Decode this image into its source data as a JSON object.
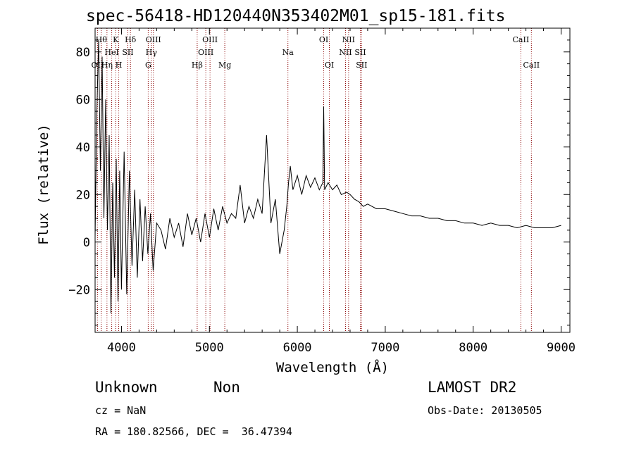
{
  "chart_data": {
    "type": "line",
    "title": "spec-56418-HD120440N353402M01_sp15-181.fits",
    "xlabel": "Wavelength (Å)",
    "ylabel": "Flux (relative)",
    "xlim": [
      3700,
      9100
    ],
    "ylim": [
      -38,
      90
    ],
    "xticks": [
      4000,
      5000,
      6000,
      7000,
      8000,
      9000
    ],
    "xtick_labels": [
      "4000",
      "5000",
      "6000",
      "7000",
      "8000",
      "9000"
    ],
    "yticks": [
      -20,
      0,
      20,
      40,
      60,
      80
    ],
    "ytick_labels": [
      "−20",
      "0",
      "20",
      "40",
      "60",
      "80"
    ],
    "grid": false,
    "series": [
      {
        "color": "#000000",
        "x": [
          3700,
          3720,
          3740,
          3760,
          3780,
          3800,
          3820,
          3840,
          3860,
          3880,
          3900,
          3920,
          3940,
          3960,
          3980,
          4000,
          4030,
          4060,
          4090,
          4120,
          4150,
          4180,
          4210,
          4240,
          4270,
          4300,
          4330,
          4360,
          4400,
          4450,
          4500,
          4550,
          4600,
          4650,
          4700,
          4750,
          4800,
          4850,
          4900,
          4950,
          5000,
          5050,
          5100,
          5150,
          5200,
          5250,
          5300,
          5350,
          5400,
          5450,
          5500,
          5550,
          5600,
          5650,
          5700,
          5750,
          5800,
          5850,
          5880,
          5900,
          5920,
          5950,
          6000,
          6050,
          6100,
          6150,
          6200,
          6250,
          6290,
          6300,
          6310,
          6350,
          6400,
          6450,
          6500,
          6560,
          6600,
          6650,
          6700,
          6750,
          6800,
          6900,
          7000,
          7100,
          7200,
          7300,
          7400,
          7500,
          7600,
          7700,
          7800,
          7900,
          8000,
          8100,
          8200,
          8300,
          8400,
          8500,
          8600,
          8700,
          8800,
          8900,
          9000
        ],
        "y": [
          2,
          55,
          85,
          30,
          78,
          10,
          60,
          5,
          45,
          -30,
          25,
          -15,
          35,
          -25,
          30,
          -20,
          38,
          -22,
          30,
          -10,
          22,
          -15,
          18,
          -8,
          15,
          -5,
          12,
          -12,
          8,
          5,
          -3,
          10,
          2,
          8,
          -2,
          12,
          3,
          10,
          0,
          12,
          2,
          14,
          5,
          15,
          8,
          12,
          10,
          24,
          8,
          15,
          10,
          18,
          12,
          45,
          8,
          18,
          -5,
          5,
          15,
          25,
          32,
          22,
          28,
          20,
          28,
          23,
          27,
          22,
          25,
          57,
          22,
          25,
          22,
          24,
          20,
          21,
          20,
          18,
          17,
          15,
          16,
          14,
          14,
          13,
          12,
          11,
          11,
          10,
          10,
          9,
          9,
          8,
          8,
          7,
          8,
          7,
          7,
          6,
          7,
          6,
          6,
          6,
          7
        ]
      }
    ],
    "line_markers": [
      {
        "wl": 3727,
        "label": "OII",
        "row": 2
      },
      {
        "wl": 3770,
        "label": "Hθ",
        "row": 0
      },
      {
        "wl": 3835,
        "label": "Hη",
        "row": 2
      },
      {
        "wl": 3889,
        "label": "HeI",
        "row": 1
      },
      {
        "wl": 3934,
        "label": "K",
        "row": 0
      },
      {
        "wl": 3969,
        "label": "H",
        "row": 2
      },
      {
        "wl": 4072,
        "label": "SII",
        "row": 1
      },
      {
        "wl": 4102,
        "label": "Hδ",
        "row": 0
      },
      {
        "wl": 4304,
        "label": "G",
        "row": 2
      },
      {
        "wl": 4340,
        "label": "Hγ",
        "row": 1
      },
      {
        "wl": 4363,
        "label": "OIII",
        "row": 0
      },
      {
        "wl": 4861,
        "label": "Hβ",
        "row": 2
      },
      {
        "wl": 4959,
        "label": "OIII",
        "row": 1
      },
      {
        "wl": 5007,
        "label": "OIII",
        "row": 0
      },
      {
        "wl": 5175,
        "label": "Mg",
        "row": 2
      },
      {
        "wl": 5893,
        "label": "Na",
        "row": 1
      },
      {
        "wl": 6300,
        "label": "OI",
        "row": 0
      },
      {
        "wl": 6364,
        "label": "OI",
        "row": 2
      },
      {
        "wl": 6548,
        "label": "NII",
        "row": 1
      },
      {
        "wl": 6583,
        "label": "NII",
        "row": 0
      },
      {
        "wl": 6716,
        "label": "SII",
        "row": 1
      },
      {
        "wl": 6731,
        "label": "SII",
        "row": 2
      },
      {
        "wl": 8542,
        "label": "CaII",
        "row": 0
      },
      {
        "wl": 8662,
        "label": "CaII",
        "row": 2
      }
    ],
    "marker_color": "#8b0000"
  },
  "info": {
    "class_label": "Unknown",
    "subclass_label": "Non",
    "cz": "cz = NaN",
    "radec": "RA = 180.82566, DEC =  36.47394",
    "survey": "LAMOST DR2",
    "obs_date": "Obs-Date: 20130505"
  }
}
